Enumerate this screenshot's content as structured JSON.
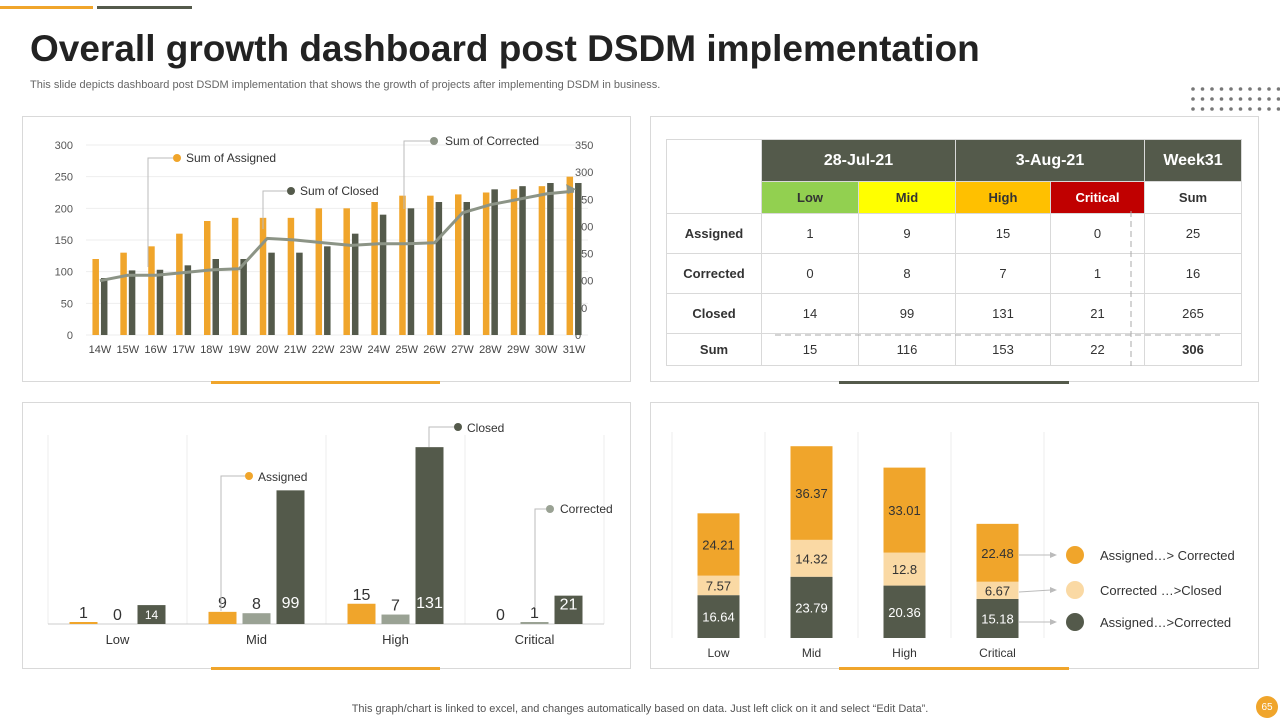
{
  "header": {
    "title": "Overall growth dashboard post DSDM implementation",
    "subtitle": "This slide depicts dashboard post DSDM implementation that shows the growth of projects after implementing DSDM in business."
  },
  "footer": {
    "note": "This graph/chart is linked to excel,  and changes automatically based on data. Just left click on it and select “Edit Data”.",
    "page_number": "65"
  },
  "colors": {
    "orange": "#f0a52b",
    "dark": "#545a4b",
    "grey_line": "#8c9486",
    "light": "#fad9a4",
    "green": "#92d050",
    "yellow": "#ffff00",
    "amber": "#ffc000",
    "red": "#c00000"
  },
  "table": {
    "header_blank": "",
    "date1": "28-Jul-21",
    "date2": "3-Aug-21",
    "week": "Week31",
    "levels": [
      "Low",
      "Mid",
      "High",
      "Critical"
    ],
    "sum_header": "Sum",
    "rows": [
      {
        "label": "Assigned",
        "values": [
          "1",
          "9",
          "15",
          "0"
        ],
        "sum": "25"
      },
      {
        "label": "Corrected",
        "values": [
          "0",
          "8",
          "7",
          "1"
        ],
        "sum": "16"
      },
      {
        "label": "Closed",
        "values": [
          "14",
          "99",
          "131",
          "21"
        ],
        "sum": "265"
      },
      {
        "label": "Sum",
        "values": [
          "15",
          "116",
          "153",
          "22"
        ],
        "sum": "306"
      }
    ]
  },
  "chart_data": [
    {
      "type": "bar",
      "categories": [
        "14W",
        "15W",
        "16W",
        "17W",
        "18W",
        "19W",
        "20W",
        "21W",
        "22W",
        "23W",
        "24W",
        "25W",
        "26W",
        "27W",
        "28W",
        "29W",
        "30W",
        "31W"
      ],
      "series": [
        {
          "name": "Sum of Assigned",
          "values": [
            120,
            130,
            140,
            160,
            180,
            185,
            185,
            185,
            200,
            200,
            210,
            220,
            220,
            222,
            225,
            230,
            235,
            250
          ],
          "axis": "left"
        },
        {
          "name": "Sum of Closed",
          "values": [
            90,
            102,
            103,
            110,
            120,
            120,
            130,
            130,
            140,
            160,
            190,
            200,
            210,
            210,
            230,
            235,
            240,
            240
          ],
          "axis": "left"
        },
        {
          "name": "Sum of Corrected",
          "type": "line",
          "values": [
            100,
            110,
            110,
            115,
            120,
            122,
            178,
            175,
            170,
            165,
            168,
            168,
            170,
            225,
            240,
            250,
            260,
            265
          ],
          "axis": "right"
        }
      ],
      "left_ticks": [
        "0",
        "50",
        "100",
        "150",
        "200",
        "250",
        "300"
      ],
      "right_ticks": [
        "0",
        "50",
        "100",
        "150",
        "200",
        "250",
        "300",
        "350"
      ],
      "ylim": [
        0,
        300
      ],
      "y2lim": [
        0,
        350
      ]
    },
    {
      "type": "bar",
      "categories": [
        "Low",
        "Mid",
        "High",
        "Critical"
      ],
      "series": [
        {
          "name": "Assigned",
          "values": [
            1,
            9,
            15,
            0
          ]
        },
        {
          "name": "Corrected",
          "values": [
            0,
            8,
            7,
            1
          ]
        },
        {
          "name": "Closed",
          "values": [
            14,
            99,
            131,
            21
          ]
        }
      ],
      "ylim": [
        0,
        140
      ]
    },
    {
      "type": "bar",
      "stacked": true,
      "categories": [
        "Low",
        "Mid",
        "High",
        "Critical"
      ],
      "series": [
        {
          "name": "Assigned…>Corrected",
          "values": [
            16.64,
            23.79,
            20.36,
            15.18
          ]
        },
        {
          "name": "Corrected …>Closed",
          "values": [
            7.57,
            14.32,
            12.8,
            6.67
          ]
        },
        {
          "name": "Assigned…> Corrected",
          "values": [
            24.21,
            36.37,
            33.01,
            22.48
          ]
        }
      ],
      "legend": [
        "Assigned…> Corrected",
        "Corrected …>Closed",
        "Assigned…>Corrected"
      ],
      "ylim": [
        0,
        80
      ]
    }
  ]
}
